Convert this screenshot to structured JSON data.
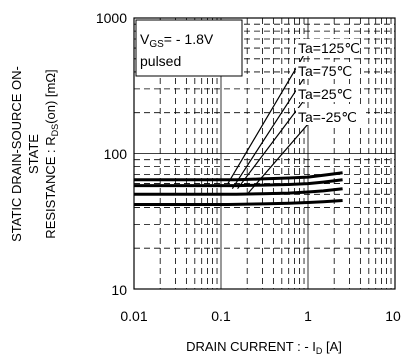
{
  "chart_data": {
    "type": "line",
    "x_scale": "log",
    "y_scale": "log",
    "xlim": [
      0.01,
      10
    ],
    "ylim": [
      10,
      1000
    ],
    "x_ticks": [
      "0.01",
      "0.1",
      "1",
      "10"
    ],
    "y_ticks": [
      "1000",
      "100",
      "10"
    ],
    "grid": true,
    "xlabel": "DRAIN CURRENT : - I_D [A]",
    "ylabel_lines": [
      "STATIC DRAIN-SOURCE ON-",
      "STATE",
      "RESISTANCE : R_DS(on) [mΩ]"
    ],
    "condition": {
      "line1_main": "V",
      "line1_sub": "GS",
      "line1_rest": "= - 1.8V",
      "line2": "pulsed"
    },
    "legend_placement": "upper-right, labels at curve ends",
    "series": [
      {
        "name": "Ta=125℃",
        "x": [
          0.01,
          0.05,
          0.15,
          0.3,
          0.6,
          1.0,
          1.5,
          2.5
        ],
        "y": [
          64,
          64,
          64,
          65,
          66,
          67,
          69,
          72
        ]
      },
      {
        "name": "Ta=75℃",
        "x": [
          0.01,
          0.05,
          0.15,
          0.3,
          0.6,
          1.0,
          1.5,
          2.5
        ],
        "y": [
          58,
          58,
          58,
          58.5,
          59,
          60,
          61.5,
          64
        ]
      },
      {
        "name": "Ta=25℃",
        "x": [
          0.01,
          0.05,
          0.15,
          0.3,
          0.6,
          1.0,
          1.5,
          2.5
        ],
        "y": [
          50,
          50,
          50,
          50.5,
          51,
          52,
          53,
          55
        ]
      },
      {
        "name": "Ta=-25℃",
        "x": [
          0.01,
          0.05,
          0.12,
          0.3,
          0.6,
          1.0,
          1.5,
          2.5
        ],
        "y": [
          42,
          42,
          42,
          42.5,
          43,
          43.5,
          44,
          45
        ]
      }
    ],
    "limit_lines": [
      {
        "x": [
          0.12,
          1.0
        ],
        "y": [
          60,
          600
        ]
      },
      {
        "x": [
          0.135,
          1.0
        ],
        "y": [
          55,
          400
        ]
      },
      {
        "x": [
          0.155,
          1.0
        ],
        "y": [
          55,
          270
        ]
      },
      {
        "x": [
          0.2,
          1.0
        ],
        "y": [
          50,
          165
        ]
      }
    ]
  }
}
